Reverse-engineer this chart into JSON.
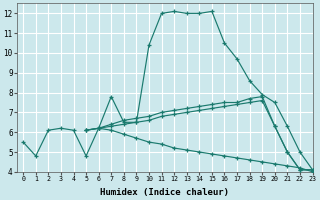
{
  "xlabel": "Humidex (Indice chaleur)",
  "ylabel": "",
  "xlim": [
    -0.5,
    23
  ],
  "ylim": [
    4,
    12.5
  ],
  "yticks": [
    4,
    5,
    6,
    7,
    8,
    9,
    10,
    11,
    12
  ],
  "xticks": [
    0,
    1,
    2,
    3,
    4,
    5,
    6,
    7,
    8,
    9,
    10,
    11,
    12,
    13,
    14,
    15,
    16,
    17,
    18,
    19,
    20,
    21,
    22,
    23
  ],
  "background_color": "#cce8ec",
  "grid_color": "#ffffff",
  "line_color": "#1a7a6e",
  "series": [
    {
      "x": [
        0,
        1,
        2,
        3,
        4,
        5,
        6,
        7,
        8,
        9,
        10,
        11,
        12,
        13,
        14,
        15,
        16,
        17,
        18,
        19,
        20,
        21,
        22,
        23
      ],
      "y": [
        5.5,
        4.8,
        6.1,
        6.2,
        6.1,
        4.8,
        6.2,
        7.8,
        6.5,
        6.5,
        10.4,
        12.0,
        12.1,
        12.0,
        12.0,
        12.1,
        10.5,
        9.7,
        8.6,
        7.9,
        7.5,
        6.3,
        5.0,
        4.1
      ]
    },
    {
      "x": [
        5,
        6,
        7,
        8,
        9,
        10,
        11,
        12,
        13,
        14,
        15,
        16,
        17,
        18,
        19,
        20,
        21,
        22,
        23
      ],
      "y": [
        6.1,
        6.2,
        6.4,
        6.6,
        6.7,
        6.8,
        7.0,
        7.1,
        7.2,
        7.3,
        7.4,
        7.5,
        7.5,
        7.7,
        7.8,
        6.3,
        5.0,
        4.1,
        4.1
      ]
    },
    {
      "x": [
        5,
        6,
        7,
        8,
        9,
        10,
        11,
        12,
        13,
        14,
        15,
        16,
        17,
        18,
        19,
        20,
        21,
        22,
        23
      ],
      "y": [
        6.1,
        6.2,
        6.3,
        6.4,
        6.5,
        6.6,
        6.8,
        6.9,
        7.0,
        7.1,
        7.2,
        7.3,
        7.4,
        7.5,
        7.6,
        6.3,
        5.0,
        4.1,
        4.1
      ]
    },
    {
      "x": [
        5,
        6,
        7,
        8,
        9,
        10,
        11,
        12,
        13,
        14,
        15,
        16,
        17,
        18,
        19,
        20,
        21,
        22,
        23
      ],
      "y": [
        6.1,
        6.2,
        6.1,
        5.9,
        5.7,
        5.5,
        5.4,
        5.2,
        5.1,
        5.0,
        4.9,
        4.8,
        4.7,
        4.6,
        4.5,
        4.4,
        4.3,
        4.2,
        4.0
      ]
    }
  ]
}
